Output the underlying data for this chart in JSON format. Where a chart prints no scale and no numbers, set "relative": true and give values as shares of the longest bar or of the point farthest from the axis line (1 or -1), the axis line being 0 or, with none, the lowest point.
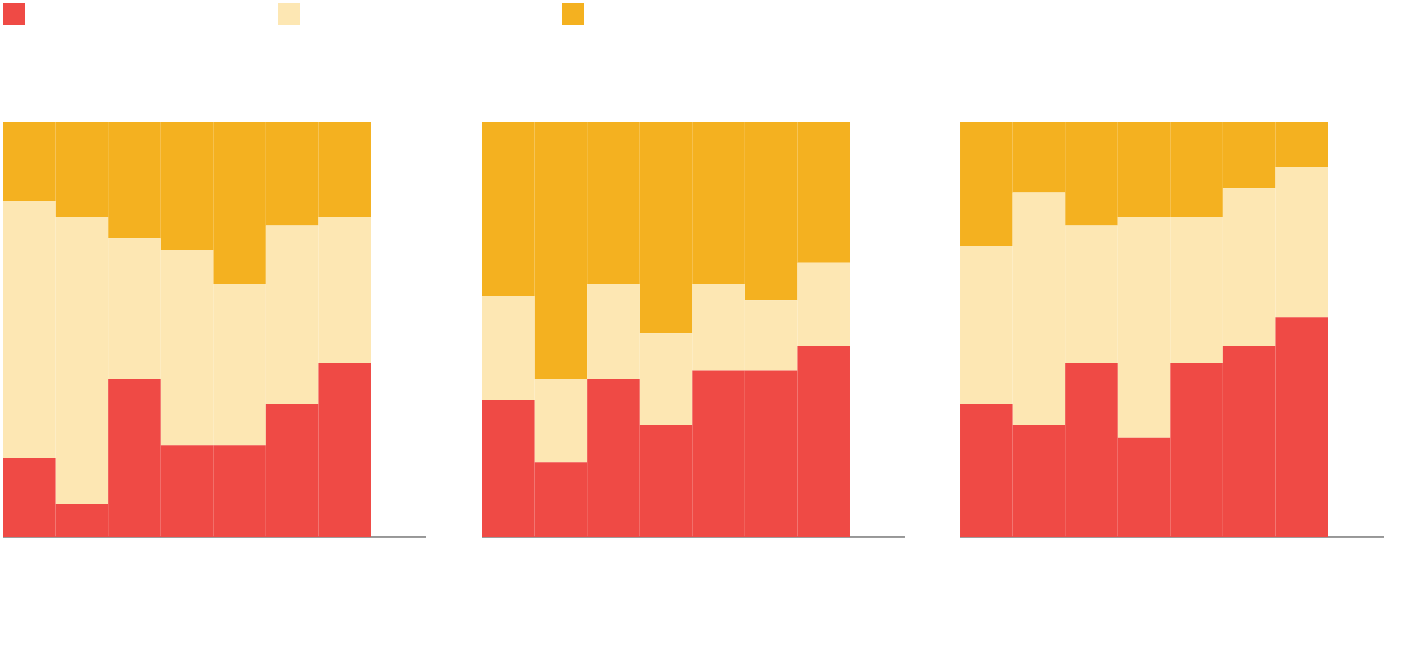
{
  "chart_data": [
    {
      "type": "bar",
      "stacked": true,
      "relative": true,
      "categories": [
        null,
        null,
        null,
        null,
        null,
        null,
        null
      ],
      "series": [
        {
          "color": "#ef4a45",
          "values": [
            0.19,
            0.08,
            0.38,
            0.22,
            0.22,
            0.32,
            0.42
          ]
        },
        {
          "color": "#fde7b3",
          "values": [
            0.62,
            0.69,
            0.34,
            0.47,
            0.39,
            0.43,
            0.35
          ]
        },
        {
          "color": "#f4b120",
          "values": [
            0.19,
            0.23,
            0.28,
            0.31,
            0.39,
            0.25,
            0.23
          ]
        }
      ]
    },
    {
      "type": "bar",
      "stacked": true,
      "relative": true,
      "categories": [
        null,
        null,
        null,
        null,
        null,
        null,
        null
      ],
      "series": [
        {
          "color": "#ef4a45",
          "values": [
            0.33,
            0.18,
            0.38,
            0.27,
            0.4,
            0.4,
            0.46
          ]
        },
        {
          "color": "#fde7b3",
          "values": [
            0.25,
            0.2,
            0.23,
            0.22,
            0.21,
            0.17,
            0.2
          ]
        },
        {
          "color": "#f4b120",
          "values": [
            0.42,
            0.62,
            0.39,
            0.51,
            0.39,
            0.43,
            0.34
          ]
        }
      ]
    },
    {
      "type": "bar",
      "stacked": true,
      "relative": true,
      "categories": [
        null,
        null,
        null,
        null,
        null,
        null,
        null
      ],
      "series": [
        {
          "color": "#ef4a45",
          "values": [
            0.32,
            0.27,
            0.42,
            0.24,
            0.42,
            0.46,
            0.53
          ]
        },
        {
          "color": "#fde7b3",
          "values": [
            0.38,
            0.56,
            0.33,
            0.53,
            0.35,
            0.38,
            0.36
          ]
        },
        {
          "color": "#f4b120",
          "values": [
            0.3,
            0.17,
            0.25,
            0.23,
            0.23,
            0.16,
            0.11
          ]
        }
      ]
    }
  ]
}
